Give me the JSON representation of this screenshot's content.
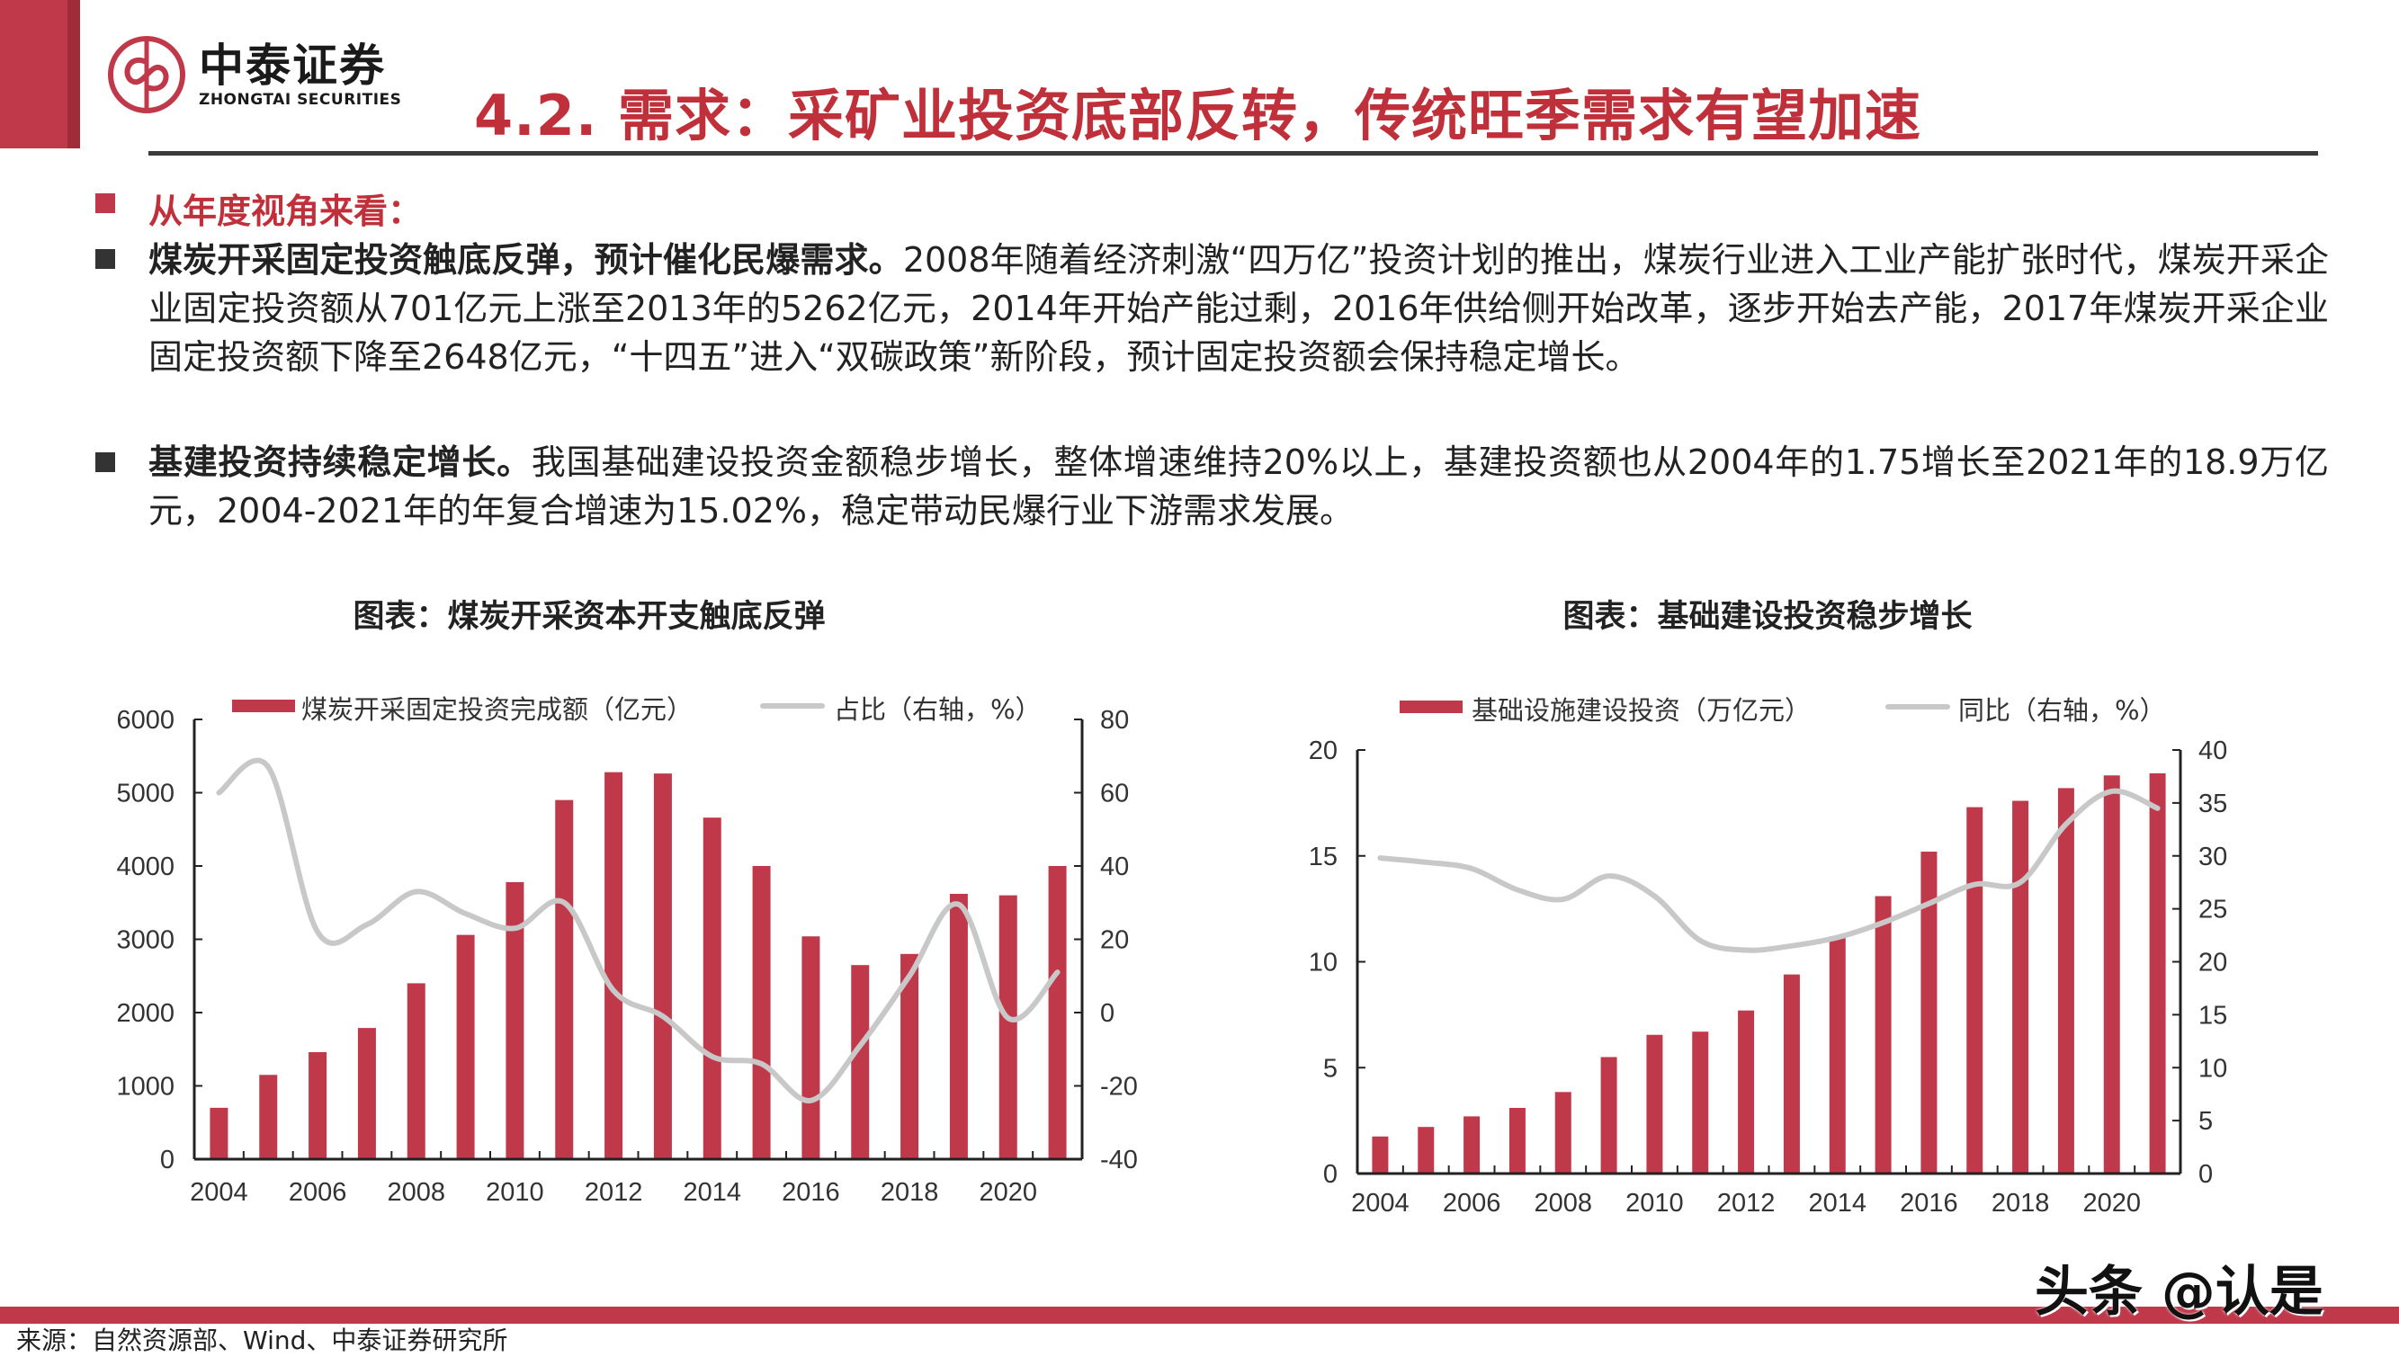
{
  "header": {
    "logo_cn": "中泰证券",
    "logo_en": "ZHONGTAI SECURITIES",
    "title": "4.2. 需求：采矿业投资底部反转，传统旺季需求有望加速"
  },
  "content": {
    "subheading": "从年度视角来看：",
    "bullets": [
      {
        "bold": "煤炭开采固定投资触底反弹，预计催化民爆需求。",
        "text": "2008年随着经济刺激“四万亿”投资计划的推出，煤炭行业进入工业产能扩张时代，煤炭开采企业固定投资额从701亿元上涨至2013年的5262亿元，2014年开始产能过剩，2016年供给侧开始改革，逐步开始去产能，2017年煤炭开采企业固定投资额下降至2648亿元，“十四五”进入“双碳政策”新阶段，预计固定投资额会保持稳定增长。"
      },
      {
        "bold": "基建投资持续稳定增长。",
        "text": "我国基础建设投资金额稳步增长，整体增速维持20%以上，基建投资额也从2004年的1.75增长至2021年的18.9万亿元，2004-2021年的年复合增速为15.02%，稳定带动民爆行业下游需求发展。"
      }
    ]
  },
  "colors": {
    "accent": "#c0394a",
    "line": "#c8c8c8",
    "title": "#c0303a"
  },
  "chart_data": [
    {
      "type": "bar",
      "title": "图表：煤炭开采资本开支触底反弹",
      "categories": [
        "2004",
        "2005",
        "2006",
        "2007",
        "2008",
        "2009",
        "2010",
        "2011",
        "2012",
        "2013",
        "2014",
        "2015",
        "2016",
        "2017",
        "2018",
        "2019",
        "2020",
        "2021"
      ],
      "x_tick_labels": [
        "2004",
        "2006",
        "2008",
        "2010",
        "2012",
        "2014",
        "2016",
        "2018",
        "2020"
      ],
      "series": [
        {
          "name": "煤炭开采固定投资完成额（亿元）",
          "type": "bar",
          "axis": "left",
          "values": [
            701,
            1150,
            1460,
            1790,
            2400,
            3060,
            3780,
            4900,
            5280,
            5262,
            4660,
            4000,
            3040,
            2648,
            2800,
            3620,
            3600,
            4000
          ]
        },
        {
          "name": "占比（右轴，%）",
          "type": "line",
          "axis": "right",
          "values": [
            60,
            67,
            22,
            24,
            33,
            27,
            23,
            30,
            6,
            -1,
            -12,
            -14,
            -24,
            -9,
            10,
            29.5,
            -1.5,
            11
          ]
        }
      ],
      "ylim": [
        0,
        6000
      ],
      "yticks": [
        "0",
        "1000",
        "2000",
        "3000",
        "4000",
        "5000",
        "6000"
      ],
      "y2lim": [
        -40,
        80
      ],
      "y2ticks": [
        "-40",
        "-20",
        "0",
        "20",
        "40",
        "60",
        "80"
      ],
      "legend": "top"
    },
    {
      "type": "bar",
      "title": "图表：基础建设投资稳步增长",
      "categories": [
        "2004",
        "2005",
        "2006",
        "2007",
        "2008",
        "2009",
        "2010",
        "2011",
        "2012",
        "2013",
        "2014",
        "2015",
        "2016",
        "2017",
        "2018",
        "2019",
        "2020",
        "2021"
      ],
      "x_tick_labels": [
        "2004",
        "2006",
        "2008",
        "2010",
        "2012",
        "2014",
        "2016",
        "2018",
        "2020"
      ],
      "series": [
        {
          "name": "基础设施建设投资（万亿元）",
          "type": "bar",
          "axis": "left",
          "values": [
            1.75,
            2.2,
            2.7,
            3.1,
            3.85,
            5.5,
            6.55,
            6.7,
            7.7,
            9.4,
            11.2,
            13.1,
            15.2,
            17.3,
            17.6,
            18.2,
            18.8,
            18.9
          ]
        },
        {
          "name": "同比（右轴，%）",
          "type": "line",
          "axis": "right",
          "values": [
            29.8,
            29.4,
            28.8,
            26.8,
            25.9,
            28.1,
            26.2,
            22,
            21.1,
            21.5,
            22.3,
            23.7,
            25.5,
            27.3,
            27.5,
            33,
            36.1,
            34.5
          ]
        }
      ],
      "ylim": [
        0,
        20
      ],
      "yticks": [
        "0",
        "5",
        "10",
        "15",
        "20"
      ],
      "y2lim": [
        0,
        40
      ],
      "y2ticks": [
        "0",
        "5",
        "10",
        "15",
        "20",
        "25",
        "30",
        "35",
        "40"
      ],
      "legend": "top"
    }
  ],
  "footer": {
    "source": "来源：自然资源部、Wind、中泰证券研究所",
    "watermark": "头条 @认是"
  }
}
